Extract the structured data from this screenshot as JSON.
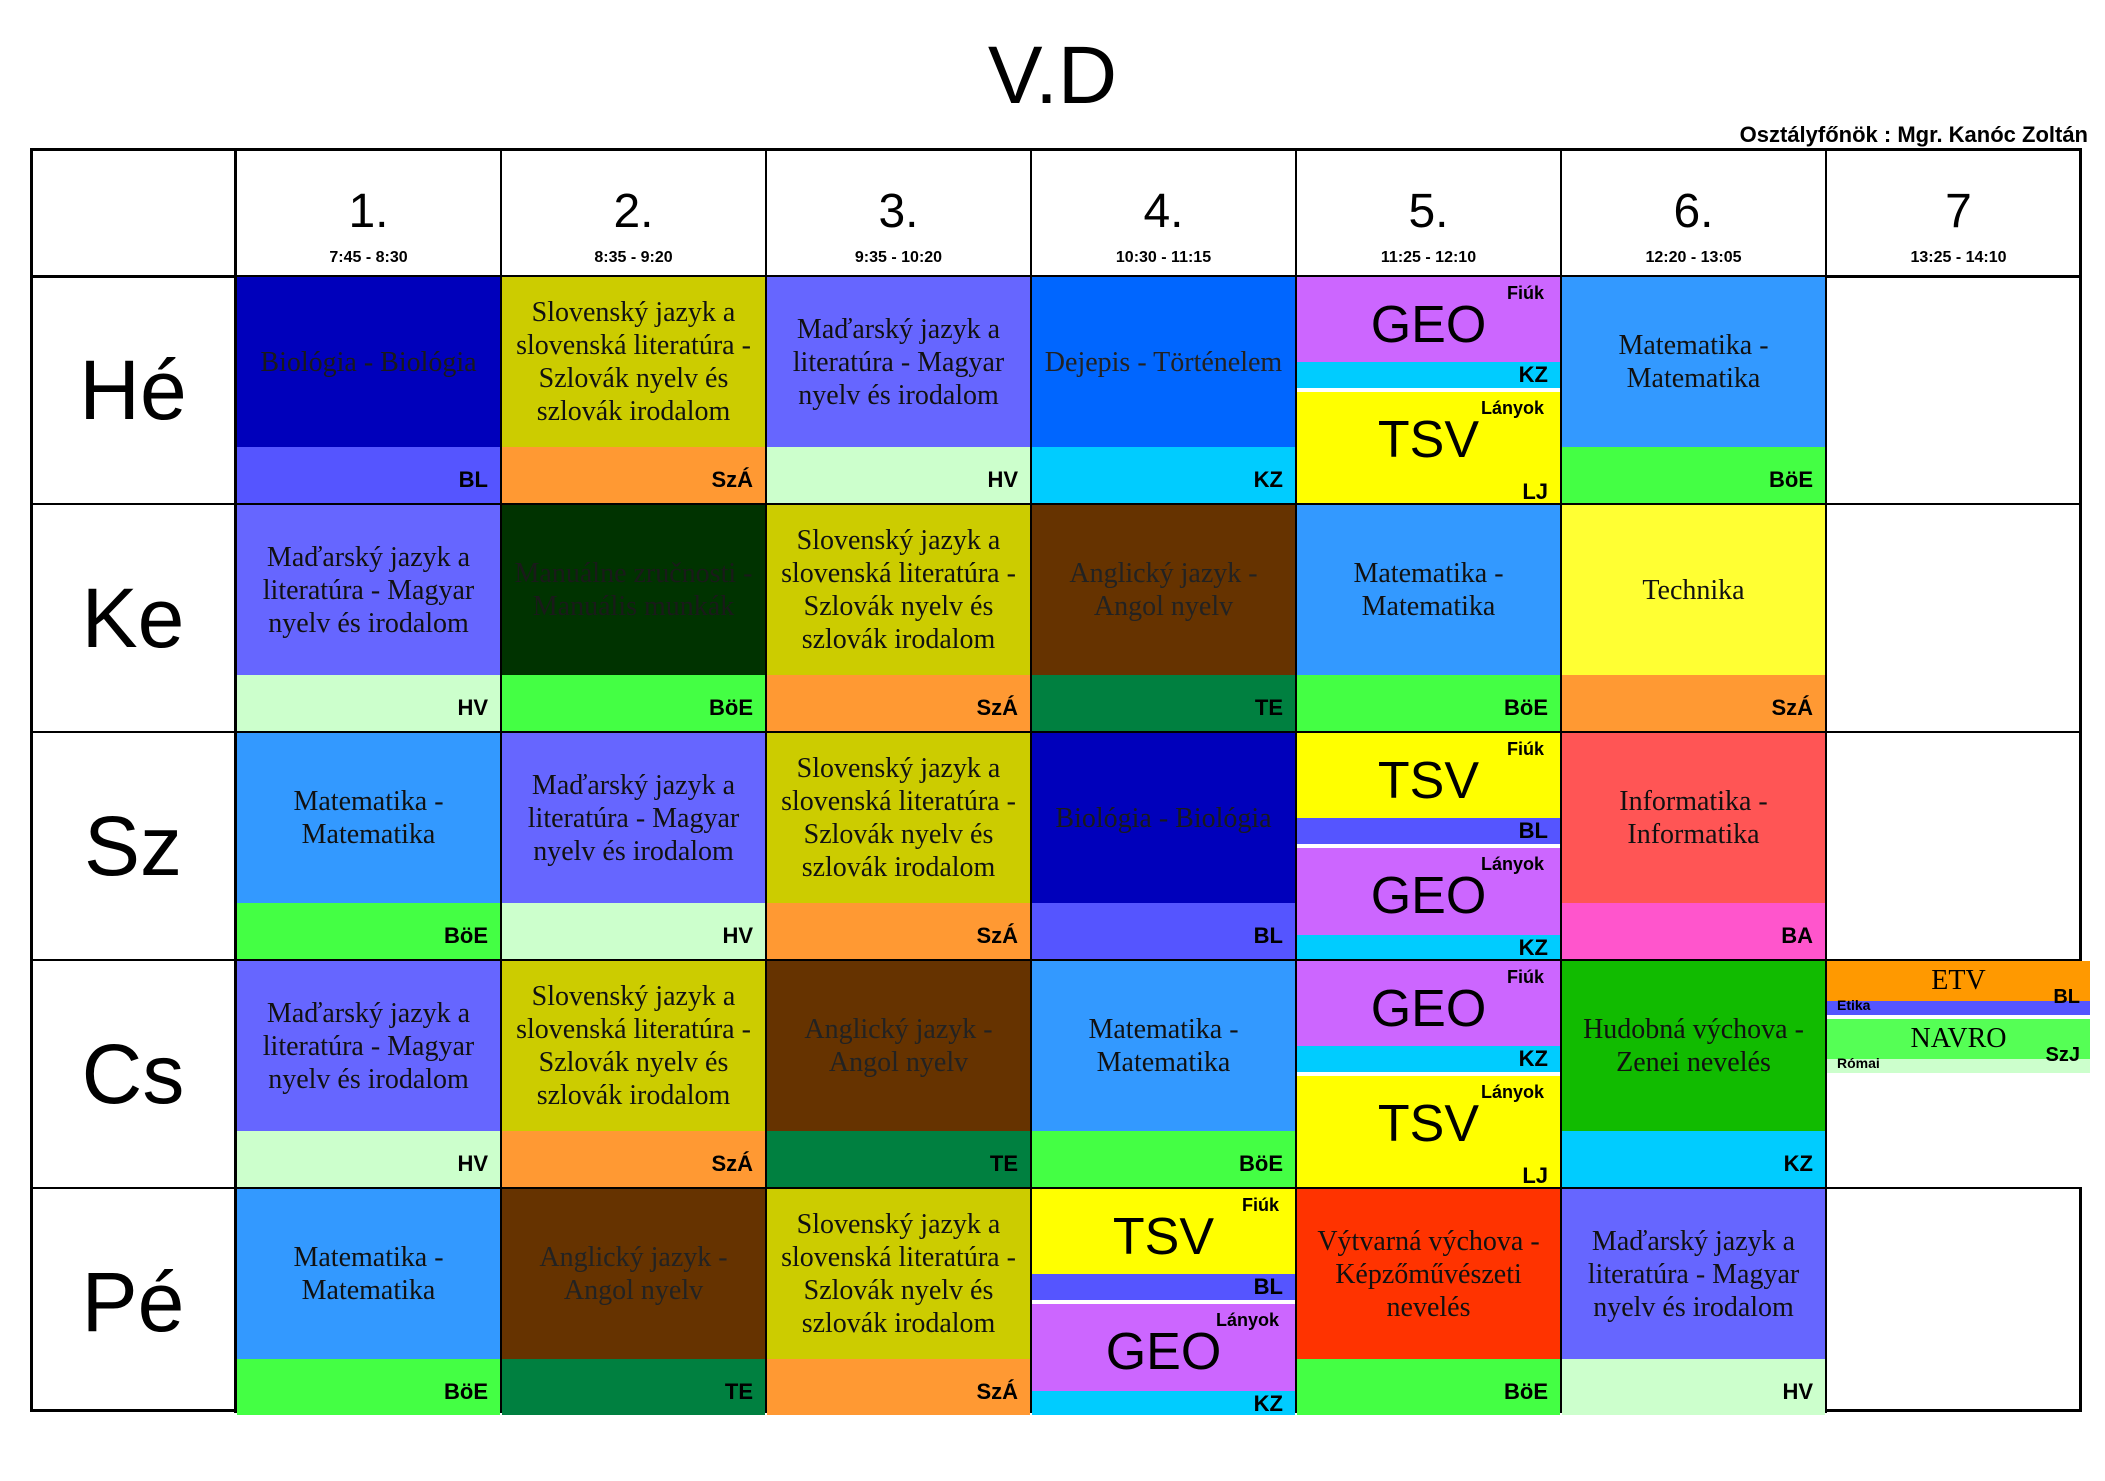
{
  "title": "V.D",
  "teacher": "Osztályfőnök : Mgr. Kanóc Zoltán",
  "periods": [
    {
      "num": "1.",
      "time": "7:45 - 8:30"
    },
    {
      "num": "2.",
      "time": "8:35 - 9:20"
    },
    {
      "num": "3.",
      "time": "9:35 - 10:20"
    },
    {
      "num": "4.",
      "time": "10:30 - 11:15"
    },
    {
      "num": "5.",
      "time": "11:25 - 12:10"
    },
    {
      "num": "6.",
      "time": "12:20 - 13:05"
    },
    {
      "num": "7",
      "time": "13:25 - 14:10"
    }
  ],
  "days": [
    "Hé",
    "Ke",
    "Sz",
    "Cs",
    "Pé"
  ],
  "cells": {
    "he1": {
      "subject": "Biológia - Biológia",
      "teacher": "BL",
      "bg": "#0000bb",
      "foot": "#5555ff"
    },
    "he2": {
      "subject": "Slovenský jazyk a slovenská literatúra - Szlovák nyelv és szlovák irodalom",
      "teacher": "SzÁ",
      "bg": "#cccc00",
      "foot": "#ff9933"
    },
    "he3": {
      "subject": "Maďarský jazyk a literatúra - Magyar nyelv és irodalom",
      "teacher": "HV",
      "bg": "#6666ff",
      "foot": "#ccffcc"
    },
    "he4": {
      "subject": "Dejepis - Történelem",
      "teacher": "KZ",
      "bg": "#0066ff",
      "foot": "#00ccff"
    },
    "he6": {
      "subject": "Matematika - Matematika",
      "teacher": "BöE",
      "bg": "#3399ff",
      "foot": "#44ff44"
    },
    "ke1": {
      "subject": "Maďarský jazyk a literatúra - Magyar nyelv és irodalom",
      "teacher": "HV",
      "bg": "#6666ff",
      "foot": "#ccffcc"
    },
    "ke2": {
      "subject": "Manuálne zručnosti - Manuális munkák",
      "teacher": "BöE",
      "bg": "#003300",
      "foot": "#44ff44"
    },
    "ke3": {
      "subject": "Slovenský jazyk a slovenská literatúra - Szlovák nyelv és szlovák irodalom",
      "teacher": "SzÁ",
      "bg": "#cccc00",
      "foot": "#ff9933"
    },
    "ke4": {
      "subject": "Anglický jazyk - Angol nyelv",
      "teacher": "TE",
      "bg": "#663300",
      "foot": "#008040"
    },
    "ke5": {
      "subject": "Matematika - Matematika",
      "teacher": "BöE",
      "bg": "#3399ff",
      "foot": "#44ff44"
    },
    "ke6": {
      "subject": "Technika",
      "teacher": "SzÁ",
      "bg": "#ffff33",
      "foot": "#ff9933"
    },
    "sz1": {
      "subject": "Matematika - Matematika",
      "teacher": "BöE",
      "bg": "#3399ff",
      "foot": "#44ff44"
    },
    "sz2": {
      "subject": "Maďarský jazyk a literatúra - Magyar nyelv és irodalom",
      "teacher": "HV",
      "bg": "#6666ff",
      "foot": "#ccffcc"
    },
    "sz3": {
      "subject": "Slovenský jazyk a slovenská literatúra - Szlovák nyelv és szlovák irodalom",
      "teacher": "SzÁ",
      "bg": "#cccc00",
      "foot": "#ff9933"
    },
    "sz4": {
      "subject": "Biológia - Biológia",
      "teacher": "BL",
      "bg": "#0000bb",
      "foot": "#5555ff"
    },
    "sz6": {
      "subject": "Informatika - Informatika",
      "teacher": "BA",
      "bg": "#ff5555",
      "foot": "#ff55cc"
    },
    "cs1": {
      "subject": "Maďarský jazyk a literatúra - Magyar nyelv és irodalom",
      "teacher": "HV",
      "bg": "#6666ff",
      "foot": "#ccffcc"
    },
    "cs2": {
      "subject": "Slovenský jazyk a slovenská literatúra - Szlovák nyelv és szlovák irodalom",
      "teacher": "SzÁ",
      "bg": "#cccc00",
      "foot": "#ff9933"
    },
    "cs3": {
      "subject": "Anglický jazyk - Angol nyelv",
      "teacher": "TE",
      "bg": "#663300",
      "foot": "#008040"
    },
    "cs4": {
      "subject": "Matematika - Matematika",
      "teacher": "BöE",
      "bg": "#3399ff",
      "foot": "#44ff44"
    },
    "cs6": {
      "subject": "Hudobná výchova - Zenei nevelés",
      "teacher": "KZ",
      "bg": "#11bb00",
      "foot": "#00ccff"
    },
    "pe1": {
      "subject": "Matematika - Matematika",
      "teacher": "BöE",
      "bg": "#3399ff",
      "foot": "#44ff44"
    },
    "pe2": {
      "subject": "Anglický jazyk - Angol nyelv",
      "teacher": "TE",
      "bg": "#663300",
      "foot": "#008040"
    },
    "pe3": {
      "subject": "Slovenský jazyk a slovenská literatúra - Szlovák nyelv és szlovák irodalom",
      "teacher": "SzÁ",
      "bg": "#cccc00",
      "foot": "#ff9933"
    },
    "pe5": {
      "subject": "Výtvarná výchova - Képzőművészeti nevelés",
      "teacher": "BöE",
      "bg": "#ff3300",
      "foot": "#44ff44"
    },
    "pe6": {
      "subject": "Maďarský jazyk a literatúra - Magyar nyelv és irodalom",
      "teacher": "HV",
      "bg": "#6666ff",
      "foot": "#ccffcc"
    }
  },
  "splits": {
    "he5": {
      "top": {
        "subject": "GEO",
        "group": "Fiúk",
        "teacher": "KZ",
        "bg": "#cc66ff",
        "bar": "#00ccff"
      },
      "bottom": {
        "subject": "TSV",
        "group": "Lányok",
        "teacher": "LJ",
        "bg": "#ffff00",
        "bar": "#ffff00"
      }
    },
    "sz5": {
      "top": {
        "subject": "TSV",
        "group": "Fiúk",
        "teacher": "BL",
        "bg": "#ffff00",
        "bar": "#5555ff"
      },
      "bottom": {
        "subject": "GEO",
        "group": "Lányok",
        "teacher": "KZ",
        "bg": "#cc66ff",
        "bar": "#00ccff"
      }
    },
    "cs5": {
      "top": {
        "subject": "GEO",
        "group": "Fiúk",
        "teacher": "KZ",
        "bg": "#cc66ff",
        "bar": "#00ccff"
      },
      "bottom": {
        "subject": "TSV",
        "group": "Lányok",
        "teacher": "LJ",
        "bg": "#ffff00",
        "bar": "#ffff00"
      }
    },
    "pe4": {
      "top": {
        "subject": "TSV",
        "group": "Fiúk",
        "teacher": "BL",
        "bg": "#ffff00",
        "bar": "#5555ff"
      },
      "bottom": {
        "subject": "GEO",
        "group": "Lányok",
        "teacher": "KZ",
        "bg": "#cc66ff",
        "bar": "#00ccff"
      }
    }
  },
  "cs7": {
    "etv": {
      "subject": "ETV",
      "label": "Etika",
      "teacher": "BL",
      "bg": "#ff9900",
      "strip": "#5555ff"
    },
    "navro": {
      "subject": "NAVRO",
      "label": "Római",
      "teacher": "SzJ",
      "bg": "#55ff55",
      "strip": "#ccffcc"
    }
  }
}
